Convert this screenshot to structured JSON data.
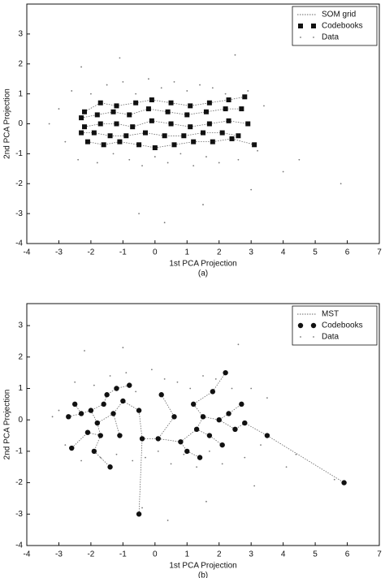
{
  "chart_data": [
    {
      "type": "scatter",
      "caption": "(a)",
      "xlabel": "1st PCA Projection",
      "ylabel": "2nd PCA Projection",
      "xlim": [
        -4,
        7
      ],
      "ylim": [
        -4,
        4
      ],
      "xticks": [
        -4,
        -3,
        -2,
        -1,
        0,
        1,
        2,
        3,
        4,
        5,
        6,
        7
      ],
      "yticks": [
        -4,
        -3,
        -2,
        -1,
        0,
        1,
        2,
        3
      ],
      "legend": "upper right",
      "series": [
        {
          "name": "SOM grid",
          "type": "line",
          "color": "#666666",
          "x": [
            -2.2,
            -1.7,
            -1.2,
            -0.6,
            -0.1,
            0.5,
            1.1,
            1.7,
            2.3,
            2.8,
            null,
            -2.3,
            -1.8,
            -1.3,
            -0.8,
            -0.2,
            0.4,
            1.0,
            1.6,
            2.2,
            2.7,
            null,
            -2.2,
            -1.7,
            -1.2,
            -0.7,
            -0.1,
            0.5,
            1.1,
            1.7,
            2.3,
            2.9,
            null,
            -2.3,
            -1.9,
            -1.4,
            -0.9,
            -0.3,
            0.3,
            0.9,
            1.5,
            2.1,
            2.6,
            null,
            -2.1,
            -1.6,
            -1.1,
            -0.5,
            0.0,
            0.6,
            1.2,
            1.8,
            2.4,
            3.1
          ],
          "values": [
            0.4,
            0.7,
            0.6,
            0.7,
            0.8,
            0.7,
            0.6,
            0.7,
            0.8,
            0.9,
            null,
            0.2,
            0.3,
            0.4,
            0.3,
            0.5,
            0.4,
            0.3,
            0.4,
            0.5,
            0.5,
            null,
            -0.1,
            0.0,
            0.0,
            -0.1,
            0.1,
            0.0,
            -0.1,
            0.0,
            0.1,
            0.0,
            null,
            -0.3,
            -0.3,
            -0.4,
            -0.4,
            -0.3,
            -0.4,
            -0.4,
            -0.3,
            -0.3,
            -0.4,
            null,
            -0.6,
            -0.7,
            -0.6,
            -0.7,
            -0.8,
            -0.7,
            -0.6,
            -0.6,
            -0.5,
            -0.7
          ]
        },
        {
          "name": "Codebooks",
          "type": "scatter",
          "marker": "square",
          "color": "#111111",
          "x": [
            -2.2,
            -1.7,
            -1.2,
            -0.6,
            -0.1,
            0.5,
            1.1,
            1.7,
            2.3,
            2.8,
            -2.3,
            -1.8,
            -1.3,
            -0.8,
            -0.2,
            0.4,
            1.0,
            1.6,
            2.2,
            2.7,
            -2.2,
            -1.7,
            -1.2,
            -0.7,
            -0.1,
            0.5,
            1.1,
            1.7,
            2.3,
            2.9,
            -2.3,
            -1.9,
            -1.4,
            -0.9,
            -0.3,
            0.3,
            0.9,
            1.5,
            2.1,
            2.6,
            -2.1,
            -1.6,
            -1.1,
            -0.5,
            0.0,
            0.6,
            1.2,
            1.8,
            2.4,
            3.1
          ],
          "values": [
            0.4,
            0.7,
            0.6,
            0.7,
            0.8,
            0.7,
            0.6,
            0.7,
            0.8,
            0.9,
            0.2,
            0.3,
            0.4,
            0.3,
            0.5,
            0.4,
            0.3,
            0.4,
            0.5,
            0.5,
            -0.1,
            0.0,
            0.0,
            -0.1,
            0.1,
            0.0,
            -0.1,
            0.0,
            0.1,
            0.0,
            -0.3,
            -0.3,
            -0.4,
            -0.4,
            -0.3,
            -0.4,
            -0.4,
            -0.3,
            -0.3,
            -0.4,
            -0.6,
            -0.7,
            -0.6,
            -0.7,
            -0.8,
            -0.7,
            -0.6,
            -0.6,
            -0.5,
            -0.7
          ]
        },
        {
          "name": "Data",
          "type": "scatter",
          "marker": "dot",
          "color": "#777777",
          "x": [
            -3.0,
            -2.8,
            -2.6,
            -2.4,
            -2.3,
            -2.0,
            -1.8,
            -1.5,
            -1.3,
            -1.0,
            -0.8,
            -0.6,
            -0.4,
            -0.2,
            0.0,
            0.2,
            0.4,
            0.6,
            0.8,
            1.0,
            1.2,
            1.4,
            1.6,
            1.8,
            2.0,
            2.2,
            2.5,
            2.6,
            2.9,
            3.2,
            3.4,
            -0.5,
            0.3,
            1.5,
            3.0,
            4.5,
            5.8,
            4.0,
            -3.3,
            -1.1
          ],
          "values": [
            0.5,
            -0.6,
            1.1,
            -1.2,
            1.9,
            1.0,
            -1.3,
            1.3,
            -1.0,
            1.4,
            -1.2,
            1.0,
            -1.4,
            1.5,
            -1.1,
            1.2,
            -1.3,
            1.4,
            -1.0,
            1.1,
            -1.4,
            1.3,
            -1.1,
            1.2,
            -1.3,
            1.0,
            2.3,
            -1.2,
            1.1,
            -0.9,
            0.6,
            -3.0,
            -3.3,
            -2.7,
            -2.2,
            -1.2,
            -2.0,
            -1.6,
            0.0,
            2.2
          ]
        }
      ]
    },
    {
      "type": "scatter",
      "caption": "(b)",
      "xlabel": "1st PCA Projection",
      "ylabel": "2nd PCA Projection",
      "xlim": [
        -4,
        7
      ],
      "ylim": [
        -4,
        3.7
      ],
      "xticks": [
        -4,
        -3,
        -2,
        -1,
        0,
        1,
        2,
        3,
        4,
        5,
        6,
        7
      ],
      "yticks": [
        -4,
        -3,
        -2,
        -1,
        0,
        1,
        2,
        3
      ],
      "legend": "upper right",
      "series": [
        {
          "name": "MST",
          "type": "line",
          "color": "#666666",
          "x": [
            -2.7,
            -2.3,
            -2.0,
            -1.6,
            -1.5,
            -1.2,
            -0.8,
            null,
            -2.5,
            -2.3,
            null,
            -2.0,
            -1.8,
            -1.7,
            -2.1,
            -2.6,
            null,
            -1.7,
            -1.9,
            -1.4,
            null,
            -1.8,
            -1.3,
            -1.0,
            -0.5,
            -0.4,
            -0.5,
            null,
            -1.3,
            -1.1,
            null,
            -0.4,
            0.1,
            0.6,
            0.2,
            null,
            0.1,
            0.8,
            1.0,
            1.4,
            null,
            0.8,
            1.3,
            1.5,
            1.2,
            1.8,
            2.2,
            null,
            1.5,
            2.0,
            2.3,
            2.7,
            null,
            1.3,
            1.7,
            2.1,
            null,
            2.0,
            2.5,
            2.8,
            3.5,
            5.9
          ],
          "values": [
            0.1,
            0.2,
            0.3,
            0.5,
            0.8,
            1.0,
            1.1,
            null,
            0.5,
            0.2,
            null,
            0.3,
            -0.1,
            -0.5,
            -0.4,
            -0.9,
            null,
            -0.5,
            -1.0,
            -1.5,
            null,
            -0.1,
            0.2,
            0.6,
            0.3,
            -0.6,
            -3.0,
            null,
            0.2,
            -0.5,
            null,
            -0.6,
            -0.6,
            0.1,
            0.8,
            null,
            -0.6,
            -0.7,
            -1.0,
            -1.2,
            null,
            -0.7,
            -0.3,
            0.1,
            0.5,
            0.9,
            1.5,
            null,
            0.1,
            0.0,
            0.2,
            0.5,
            null,
            -0.3,
            -0.5,
            -0.8,
            null,
            0.0,
            -0.3,
            -0.1,
            -0.5,
            -2.0
          ]
        },
        {
          "name": "Codebooks",
          "type": "scatter",
          "marker": "circle",
          "color": "#111111",
          "x": [
            -2.5,
            -2.3,
            -2.0,
            -1.8,
            -1.6,
            -1.5,
            -1.3,
            -1.7,
            -2.1,
            -2.6,
            -1.9,
            -1.4,
            -1.1,
            -1.0,
            -0.8,
            -0.5,
            -0.4,
            -0.5,
            -2.7,
            -1.2,
            0.2,
            0.1,
            0.8,
            0.6,
            1.0,
            1.2,
            1.3,
            1.5,
            1.7,
            1.8,
            2.0,
            2.1,
            2.2,
            2.3,
            2.5,
            2.7,
            2.8,
            3.5,
            5.9,
            1.4
          ],
          "values": [
            0.5,
            0.2,
            0.3,
            -0.1,
            0.5,
            0.8,
            0.2,
            -0.5,
            -0.4,
            -0.9,
            -1.0,
            -1.5,
            -0.5,
            0.6,
            1.1,
            0.3,
            -0.6,
            -3.0,
            0.1,
            1.0,
            0.8,
            -0.6,
            -0.7,
            0.1,
            -1.0,
            0.5,
            -0.3,
            0.1,
            -0.5,
            0.9,
            0.0,
            -0.8,
            1.5,
            0.2,
            -0.3,
            0.5,
            -0.1,
            -0.5,
            -2.0,
            -1.2
          ]
        },
        {
          "name": "Data",
          "type": "scatter",
          "marker": "dot",
          "color": "#777777",
          "x": [
            -3.0,
            -2.8,
            -2.5,
            -2.3,
            -2.2,
            -1.9,
            -1.7,
            -1.4,
            -1.2,
            -0.9,
            -0.7,
            -0.6,
            -0.3,
            -0.1,
            0.1,
            0.3,
            0.5,
            0.7,
            0.9,
            1.1,
            1.3,
            1.5,
            1.7,
            1.9,
            2.1,
            2.4,
            2.6,
            2.8,
            3.0,
            3.3,
            3.5,
            -0.4,
            0.4,
            1.6,
            3.1,
            4.4,
            5.6,
            4.1,
            -3.2,
            -1.0
          ],
          "values": [
            0.3,
            -0.8,
            1.2,
            -1.3,
            2.2,
            1.1,
            -1.2,
            1.4,
            -1.1,
            1.5,
            -1.3,
            0.9,
            -1.2,
            1.6,
            -1.0,
            1.3,
            -1.4,
            1.2,
            -1.1,
            1.0,
            -1.5,
            1.4,
            -1.0,
            1.3,
            -1.4,
            1.0,
            2.4,
            -1.2,
            1.0,
            -0.8,
            0.7,
            -2.8,
            -3.2,
            -2.6,
            -2.1,
            -1.1,
            -1.9,
            -1.5,
            0.1,
            2.3
          ]
        }
      ]
    }
  ]
}
